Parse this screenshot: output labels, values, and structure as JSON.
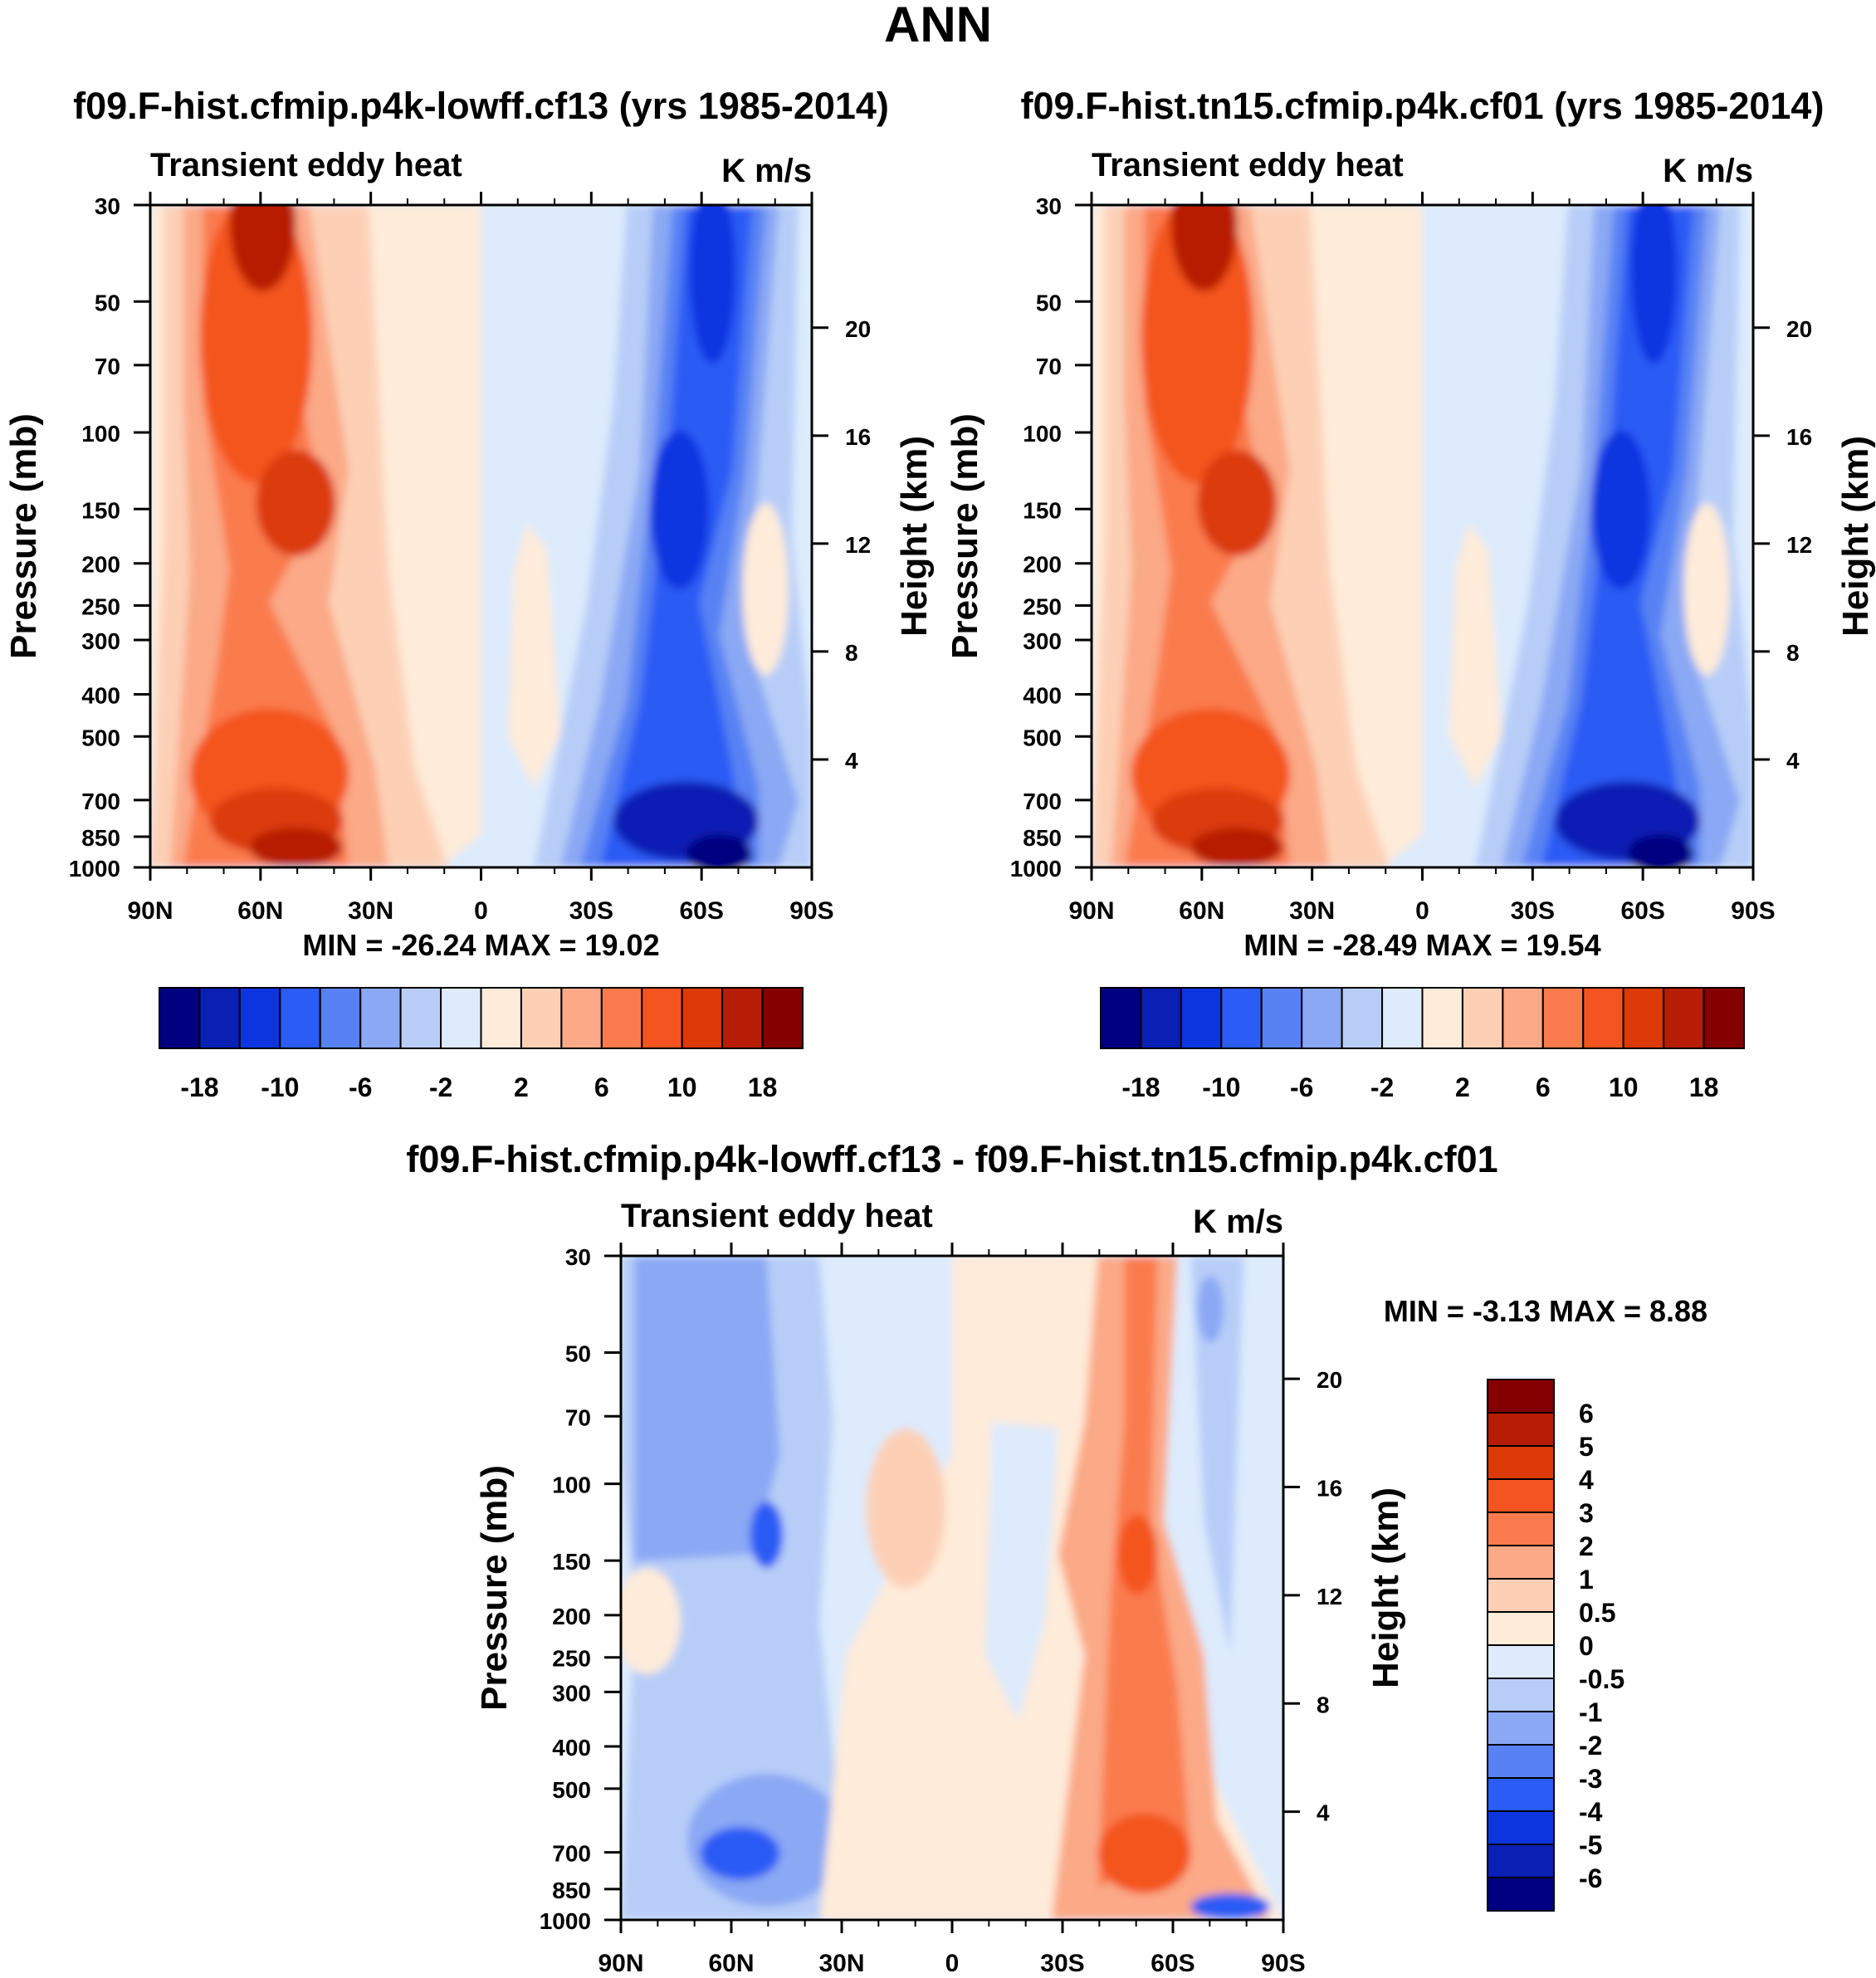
{
  "page_title": "ANN",
  "palettes": {
    "sequential": [
      "#000080",
      "#0a1fb4",
      "#0c35e0",
      "#2b5cf5",
      "#5882f4",
      "#8aa8f4",
      "#b7cdf8",
      "#ddebfd",
      "#feebd9",
      "#fdd0b6",
      "#fba987",
      "#fa7b4d",
      "#f4541f",
      "#db3a07",
      "#b71d04",
      "#850000"
    ],
    "difference": [
      "#000080",
      "#0a1fb4",
      "#0c35e0",
      "#2b5cf5",
      "#5882f4",
      "#8aa8f4",
      "#b7cdf8",
      "#ddebfd",
      "#feebd9",
      "#fdd0b6",
      "#fba987",
      "#fa7b4d",
      "#f4541f",
      "#db3a07",
      "#b71d04",
      "#850000"
    ]
  },
  "chart_data": [
    {
      "type": "heatmap",
      "title": "f09.F-hist.cfmip.p4k-lowff.cf13 (yrs 1985-2014)",
      "subtitle_left": "Transient eddy heat",
      "subtitle_right": "K m/s",
      "ylabel": "Pressure (mb)",
      "y2label": "Height (km)",
      "x_ticks": [
        "90N",
        "60N",
        "30N",
        "0",
        "30S",
        "60S",
        "90S"
      ],
      "y_ticks": [
        "30",
        "50",
        "70",
        "100",
        "150",
        "200",
        "250",
        "300",
        "400",
        "500",
        "700",
        "850",
        "1000"
      ],
      "y2_ticks": [
        "20",
        "16",
        "12",
        "8",
        "4"
      ],
      "min_max": "MIN = -26.24  MAX =  19.02",
      "colorbar_labels": [
        "-18",
        "-10",
        "-6",
        "-2",
        "2",
        "6",
        "10",
        "18"
      ],
      "xlim": [
        "90N",
        "90S"
      ],
      "ylim": [
        1000,
        30
      ],
      "scale": "log-pressure"
    },
    {
      "type": "heatmap",
      "title": "f09.F-hist.tn15.cfmip.p4k.cf01 (yrs 1985-2014)",
      "subtitle_left": "Transient eddy heat",
      "subtitle_right": "K m/s",
      "ylabel": "Pressure (mb)",
      "y2label": "Height (km)",
      "x_ticks": [
        "90N",
        "60N",
        "30N",
        "0",
        "30S",
        "60S",
        "90S"
      ],
      "y_ticks": [
        "30",
        "50",
        "70",
        "100",
        "150",
        "200",
        "250",
        "300",
        "400",
        "500",
        "700",
        "850",
        "1000"
      ],
      "y2_ticks": [
        "20",
        "16",
        "12",
        "8",
        "4"
      ],
      "min_max": "MIN = -28.49  MAX =  19.54",
      "colorbar_labels": [
        "-18",
        "-10",
        "-6",
        "-2",
        "2",
        "6",
        "10",
        "18"
      ],
      "xlim": [
        "90N",
        "90S"
      ],
      "ylim": [
        1000,
        30
      ],
      "scale": "log-pressure"
    },
    {
      "type": "heatmap",
      "title": "f09.F-hist.cfmip.p4k-lowff.cf13 - f09.F-hist.tn15.cfmip.p4k.cf01",
      "subtitle_left": "Transient eddy heat",
      "subtitle_right": "K m/s",
      "ylabel": "Pressure (mb)",
      "y2label": "Height (km)",
      "x_ticks": [
        "90N",
        "60N",
        "30N",
        "0",
        "30S",
        "60S",
        "90S"
      ],
      "y_ticks": [
        "30",
        "50",
        "70",
        "100",
        "150",
        "200",
        "250",
        "300",
        "400",
        "500",
        "700",
        "850",
        "1000"
      ],
      "y2_ticks": [
        "20",
        "16",
        "12",
        "8",
        "4"
      ],
      "min_max": "MIN =  -3.13  MAX =   8.88",
      "colorbar_labels": [
        "6",
        "5",
        "4",
        "3",
        "2",
        "1",
        "0.5",
        "0",
        "-0.5",
        "-1",
        "-2",
        "-3",
        "-4",
        "-5",
        "-6"
      ],
      "xlim": [
        "90N",
        "90S"
      ],
      "ylim": [
        1000,
        30
      ],
      "scale": "log-pressure"
    }
  ]
}
